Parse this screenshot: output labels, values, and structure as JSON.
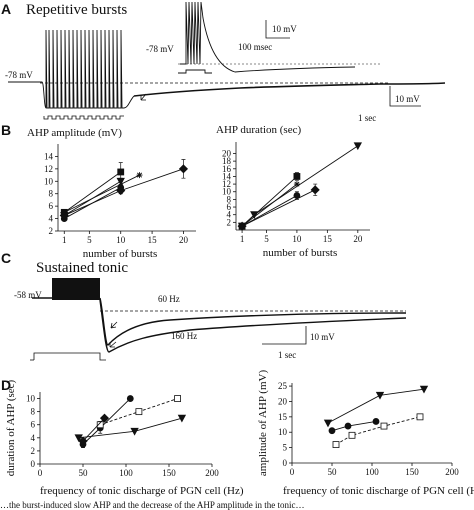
{
  "panels": {
    "A": {
      "letter": "A",
      "title": "Repetitive bursts",
      "vm_label": "-78 mV",
      "inset_vm_label": "-78 mV",
      "inset_scale_v": "10 mV",
      "inset_scale_t": "100 msec",
      "scale_v": "10 mV",
      "scale_t": "1 sec"
    },
    "B": {
      "letter": "B",
      "left_title": "AHP amplitude (mV)",
      "right_title": "AHP duration (sec)"
    },
    "C": {
      "letter": "C",
      "title": "Sustained tonic",
      "vm_label": "-58 mV",
      "freq_high": "60 Hz",
      "freq_low": "160 Hz",
      "scale_v": "10 mV",
      "scale_t": "1 sec"
    },
    "D": {
      "letter": "D"
    }
  },
  "caption_fragment": "…the burst-induced slow AHP and the decrease of the AHP amplitude in the tonic…",
  "chart_data": [
    {
      "id": "B-left",
      "type": "line",
      "title": "AHP amplitude (mV)",
      "xlabel": "number of bursts",
      "ylabel": "",
      "xlim": [
        0,
        22
      ],
      "ylim": [
        2,
        16
      ],
      "xticks": [
        1,
        5,
        10,
        15,
        20
      ],
      "yticks": [
        2,
        4,
        6,
        8,
        10,
        12,
        14
      ],
      "series": [
        {
          "marker": "square",
          "x": [
            1,
            10
          ],
          "y": [
            5,
            11.5
          ],
          "err": [
            0,
            1.5
          ]
        },
        {
          "marker": "triangle",
          "x": [
            1,
            10
          ],
          "y": [
            4.5,
            10
          ],
          "err": [
            0,
            0.5
          ]
        },
        {
          "marker": "circle",
          "x": [
            1,
            10
          ],
          "y": [
            4,
            9
          ],
          "err": [
            0,
            0.5
          ]
        },
        {
          "marker": "diamond",
          "x": [
            1,
            10,
            20
          ],
          "y": [
            4.5,
            8.5,
            12
          ],
          "err": [
            0,
            0.5,
            1.5
          ]
        },
        {
          "marker": "star",
          "x": [
            1,
            13
          ],
          "y": [
            5,
            11
          ],
          "err": [
            0,
            0
          ]
        }
      ]
    },
    {
      "id": "B-right",
      "type": "line",
      "title": "AHP duration (sec)",
      "xlabel": "number of bursts",
      "ylabel": "",
      "xlim": [
        0,
        22
      ],
      "ylim": [
        0,
        23
      ],
      "xticks": [
        1,
        5,
        10,
        15,
        20
      ],
      "yticks": [
        2,
        4,
        6,
        8,
        10,
        12,
        14,
        16,
        18,
        20
      ],
      "series": [
        {
          "marker": "triangle",
          "x": [
            1,
            3,
            20
          ],
          "y": [
            1,
            4,
            22
          ],
          "err": [
            0,
            0,
            0
          ]
        },
        {
          "marker": "square",
          "x": [
            1,
            10
          ],
          "y": [
            1,
            14
          ],
          "err": [
            0,
            1
          ]
        },
        {
          "marker": "circle",
          "x": [
            1,
            10
          ],
          "y": [
            1,
            9
          ],
          "err": [
            0,
            1
          ]
        },
        {
          "marker": "diamond",
          "x": [
            1,
            13
          ],
          "y": [
            1,
            10.5
          ],
          "err": [
            0,
            1.5
          ]
        },
        {
          "marker": "star",
          "x": [
            1,
            10
          ],
          "y": [
            1,
            12
          ],
          "err": [
            0,
            0
          ]
        }
      ]
    },
    {
      "id": "D-left",
      "type": "line",
      "title": "",
      "xlabel": "frequency of tonic discharge of PGN cell (Hz)",
      "ylabel": "duration of AHP (sec)",
      "xlim": [
        0,
        200
      ],
      "ylim": [
        0,
        11
      ],
      "xticks": [
        0,
        50,
        100,
        150,
        200
      ],
      "yticks": [
        0,
        2,
        4,
        6,
        8,
        10
      ],
      "series": [
        {
          "marker": "circle",
          "style": "solid",
          "x": [
            50,
            70,
            105
          ],
          "y": [
            3,
            5.5,
            10
          ],
          "err": [
            0.5,
            0.8,
            0
          ]
        },
        {
          "marker": "square",
          "style": "dashed",
          "x": [
            70,
            115,
            160
          ],
          "y": [
            6,
            8,
            10
          ],
          "err": [
            0.5,
            0.4,
            0.2
          ]
        },
        {
          "marker": "triangle",
          "style": "solid",
          "x": [
            45,
            110,
            165
          ],
          "y": [
            4,
            5,
            7
          ],
          "err": [
            0,
            0,
            0
          ]
        },
        {
          "marker": "diamond",
          "style": "solid",
          "x": [
            50,
            75
          ],
          "y": [
            3.5,
            7
          ],
          "err": [
            0,
            0
          ]
        }
      ]
    },
    {
      "id": "D-right",
      "type": "line",
      "title": "",
      "xlabel": "frequency of tonic discharge of PGN cell (Hz)",
      "ylabel": "amplitude of AHP (mV)",
      "xlim": [
        0,
        200
      ],
      "ylim": [
        0,
        26
      ],
      "xticks": [
        0,
        50,
        100,
        150,
        200
      ],
      "yticks": [
        0,
        5,
        10,
        15,
        20,
        25
      ],
      "series": [
        {
          "marker": "triangle",
          "style": "solid",
          "x": [
            45,
            110,
            165
          ],
          "y": [
            13,
            22,
            24
          ],
          "err": [
            0,
            0,
            0
          ]
        },
        {
          "marker": "circle",
          "style": "solid",
          "x": [
            50,
            70,
            105
          ],
          "y": [
            10.5,
            12,
            13.5
          ],
          "err": [
            0,
            0,
            0
          ]
        },
        {
          "marker": "square",
          "style": "dashed",
          "x": [
            55,
            75,
            115,
            160
          ],
          "y": [
            6,
            9,
            12,
            15
          ],
          "err": [
            0,
            0,
            0,
            0.5
          ]
        }
      ]
    }
  ]
}
